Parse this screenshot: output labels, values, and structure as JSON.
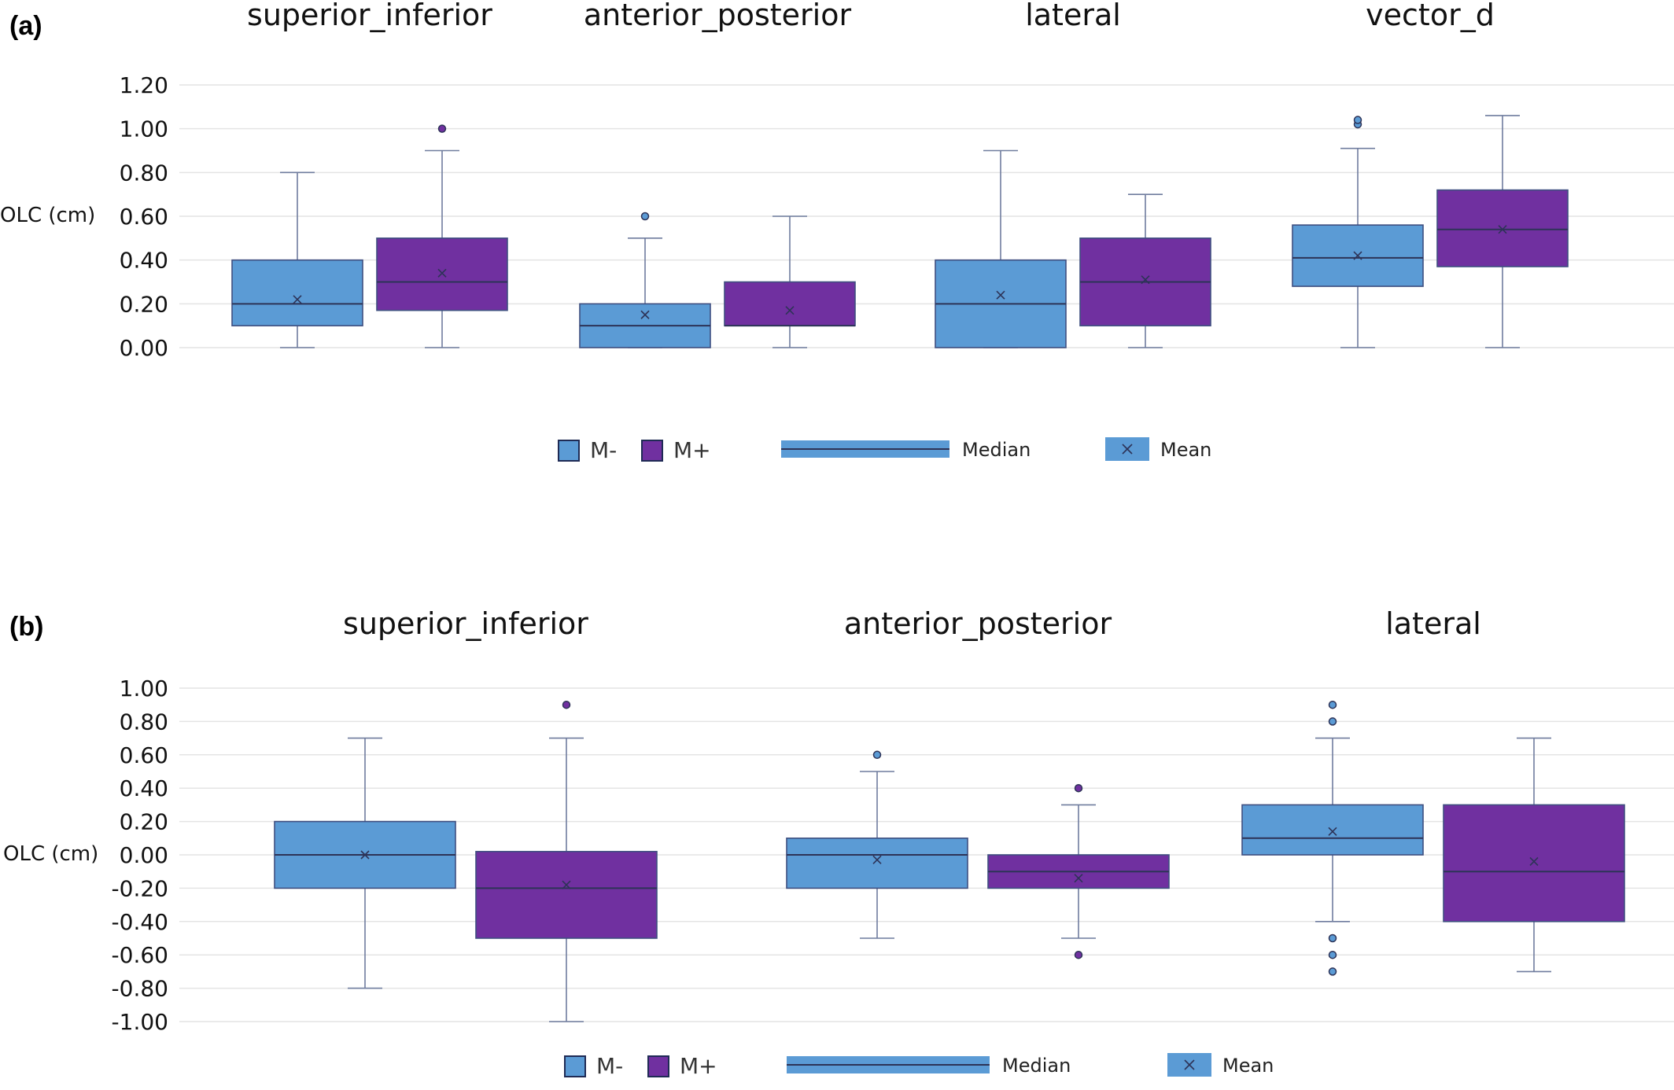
{
  "colors": {
    "m_minus": "#5b9bd5",
    "m_plus": "#7030a0",
    "outline": "#3f4f80",
    "grid": "#e4e4e4"
  },
  "chart_data": [
    {
      "panel": "(a)",
      "type": "box",
      "ylabel": "OLC (cm)",
      "ylim": [
        0,
        1.2
      ],
      "yticks": [
        "0.00",
        "0.20",
        "0.40",
        "0.60",
        "0.80",
        "1.00",
        "1.20"
      ],
      "grid": true,
      "legend": {
        "position": "bottom",
        "items": [
          "M-",
          "M+"
        ],
        "median_label": "Median",
        "mean_label": "Mean"
      },
      "groups": [
        {
          "name": "superior_inferior",
          "boxes": [
            {
              "series": "M-",
              "min": 0.0,
              "q1": 0.1,
              "median": 0.2,
              "q3": 0.4,
              "max": 0.8,
              "mean": 0.22,
              "outliers": []
            },
            {
              "series": "M+",
              "min": 0.0,
              "q1": 0.17,
              "median": 0.3,
              "q3": 0.5,
              "max": 0.9,
              "mean": 0.34,
              "outliers": [
                1.0
              ]
            }
          ]
        },
        {
          "name": "anterior_posterior",
          "boxes": [
            {
              "series": "M-",
              "min": 0.0,
              "q1": 0.0,
              "median": 0.1,
              "q3": 0.2,
              "max": 0.5,
              "mean": 0.15,
              "outliers": [
                0.6
              ]
            },
            {
              "series": "M+",
              "min": 0.0,
              "q1": 0.1,
              "median": 0.1,
              "q3": 0.3,
              "max": 0.6,
              "mean": 0.17,
              "outliers": []
            }
          ]
        },
        {
          "name": "lateral",
          "boxes": [
            {
              "series": "M-",
              "min": 0.0,
              "q1": 0.0,
              "median": 0.2,
              "q3": 0.4,
              "max": 0.9,
              "mean": 0.24,
              "outliers": []
            },
            {
              "series": "M+",
              "min": 0.0,
              "q1": 0.1,
              "median": 0.3,
              "q3": 0.5,
              "max": 0.7,
              "mean": 0.31,
              "outliers": []
            }
          ]
        },
        {
          "name": "vector_d",
          "boxes": [
            {
              "series": "M-",
              "min": 0.0,
              "q1": 0.28,
              "median": 0.41,
              "q3": 0.56,
              "max": 0.91,
              "mean": 0.42,
              "outliers": [
                1.02,
                1.04
              ]
            },
            {
              "series": "M+",
              "min": 0.0,
              "q1": 0.37,
              "median": 0.54,
              "q3": 0.72,
              "max": 1.06,
              "mean": 0.54,
              "outliers": []
            }
          ]
        }
      ]
    },
    {
      "panel": "(b)",
      "type": "box",
      "ylabel": "OLC (cm)",
      "ylim": [
        -1.0,
        1.0
      ],
      "yticks": [
        "-1.00",
        "-0.80",
        "-0.60",
        "-0.40",
        "-0.20",
        "0.00",
        "0.20",
        "0.40",
        "0.60",
        "0.80",
        "1.00"
      ],
      "grid": true,
      "legend": {
        "position": "bottom",
        "items": [
          "M-",
          "M+"
        ],
        "median_label": "Median",
        "mean_label": "Mean"
      },
      "groups": [
        {
          "name": "superior_inferior",
          "boxes": [
            {
              "series": "M-",
              "min": -0.8,
              "q1": -0.2,
              "median": 0.0,
              "q3": 0.2,
              "max": 0.7,
              "mean": 0.0,
              "outliers": []
            },
            {
              "series": "M+",
              "min": -1.0,
              "q1": -0.5,
              "median": -0.2,
              "q3": 0.02,
              "max": 0.7,
              "mean": -0.18,
              "outliers": [
                0.9
              ]
            }
          ]
        },
        {
          "name": "anterior_posterior",
          "boxes": [
            {
              "series": "M-",
              "min": -0.5,
              "q1": -0.2,
              "median": 0.0,
              "q3": 0.1,
              "max": 0.5,
              "mean": -0.03,
              "outliers": [
                0.6
              ]
            },
            {
              "series": "M+",
              "min": -0.5,
              "q1": -0.2,
              "median": -0.1,
              "q3": 0.0,
              "max": 0.3,
              "mean": -0.14,
              "outliers": [
                0.4,
                -0.6
              ]
            }
          ]
        },
        {
          "name": "lateral",
          "boxes": [
            {
              "series": "M-",
              "min": -0.4,
              "q1": 0.0,
              "median": 0.1,
              "q3": 0.3,
              "max": 0.7,
              "mean": 0.14,
              "outliers": [
                0.9,
                0.8,
                -0.5,
                -0.6,
                -0.7
              ]
            },
            {
              "series": "M+",
              "min": -0.7,
              "q1": -0.4,
              "median": -0.1,
              "q3": 0.3,
              "max": 0.7,
              "mean": -0.04,
              "outliers": []
            }
          ]
        }
      ]
    }
  ]
}
